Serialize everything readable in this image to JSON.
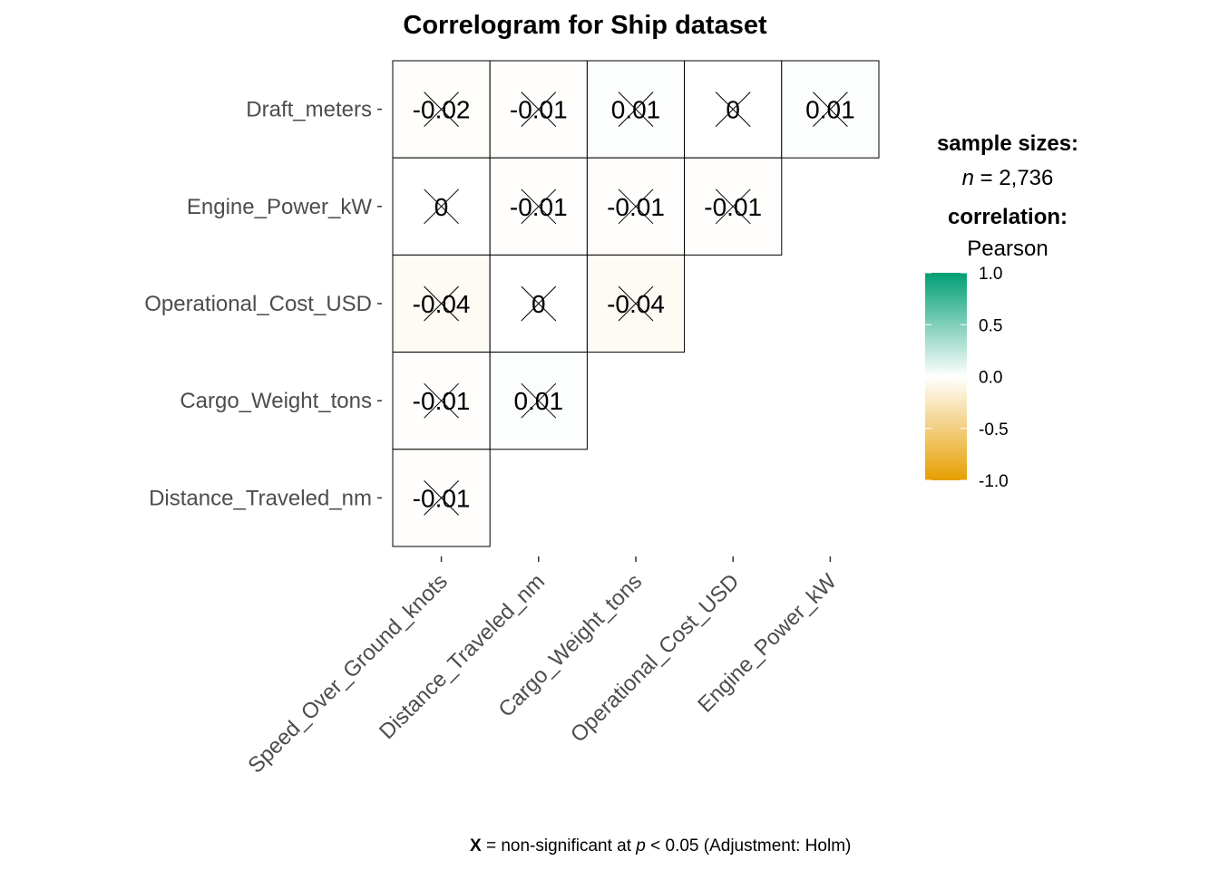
{
  "chart_data": {
    "type": "heatmap",
    "title": "Correlogram for Ship dataset",
    "row_labels": [
      "Draft_meters",
      "Engine_Power_kW",
      "Operational_Cost_USD",
      "Cargo_Weight_tons",
      "Distance_Traveled_nm"
    ],
    "col_labels": [
      "Speed_Over_Ground_knots",
      "Distance_Traveled_nm",
      "Cargo_Weight_tons",
      "Operational_Cost_USD",
      "Engine_Power_kW"
    ],
    "cells": [
      [
        -0.02,
        -0.01,
        0.01,
        0,
        0.01
      ],
      [
        0,
        -0.01,
        -0.01,
        -0.01
      ],
      [
        -0.04,
        0,
        -0.04
      ],
      [
        -0.01,
        0.01
      ],
      [
        -0.01
      ]
    ],
    "cell_labels": [
      [
        "-0.02",
        "-0.01",
        "0.01",
        "0",
        "0.01"
      ],
      [
        "0",
        "-0.01",
        "-0.01",
        "-0.01"
      ],
      [
        "-0.04",
        "0",
        "-0.04"
      ],
      [
        "-0.01",
        "0.01"
      ],
      [
        "-0.01"
      ]
    ],
    "non_significant_all": true,
    "legend": {
      "sample_heading": "sample sizes:",
      "n_symbol": "n",
      "n_text": " = 2,736",
      "corr_heading": "correlation:",
      "corr_method": "Pearson",
      "scale_min": -1.0,
      "scale_max": 1.0,
      "ticks": [
        "1.0",
        "0.5",
        "0.0",
        "-0.5",
        "-1.0"
      ],
      "colors": {
        "low": "#E69F00",
        "mid": "#FFFFFF",
        "high": "#009E73"
      }
    },
    "caption": {
      "marker": "X",
      "text_before_p": " = non-significant at ",
      "p_symbol": "p",
      "text_after_p": " < 0.05 (Adjustment: Holm)"
    }
  }
}
